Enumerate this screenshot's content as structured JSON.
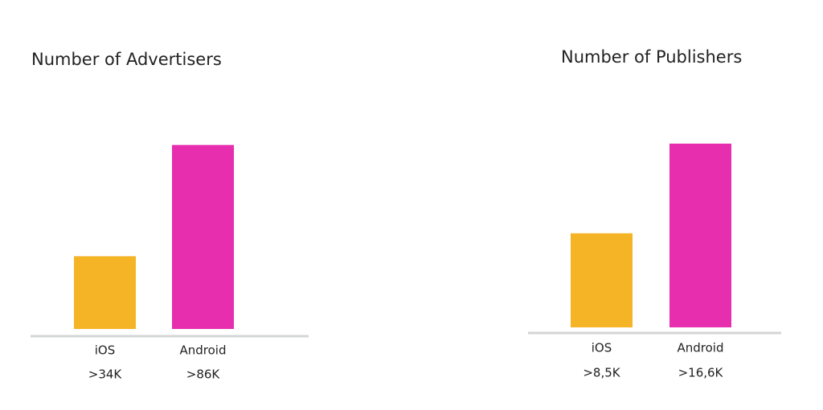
{
  "chart_data": [
    {
      "type": "bar",
      "title": "Number of Advertisers",
      "categories": [
        "iOS",
        "Android"
      ],
      "values": [
        34000,
        86000
      ],
      "value_labels": [
        ">34K",
        ">86K"
      ],
      "colors": [
        "#f5b326",
        "#e62eae"
      ],
      "ylim": [
        0,
        90000
      ]
    },
    {
      "type": "bar",
      "title": "Number of Publishers",
      "categories": [
        "iOS",
        "Android"
      ],
      "values": [
        8500,
        16600
      ],
      "value_labels": [
        ">8,5K",
        ">16,6K"
      ],
      "colors": [
        "#f5b326",
        "#e62eae"
      ],
      "ylim": [
        0,
        17400
      ]
    }
  ]
}
